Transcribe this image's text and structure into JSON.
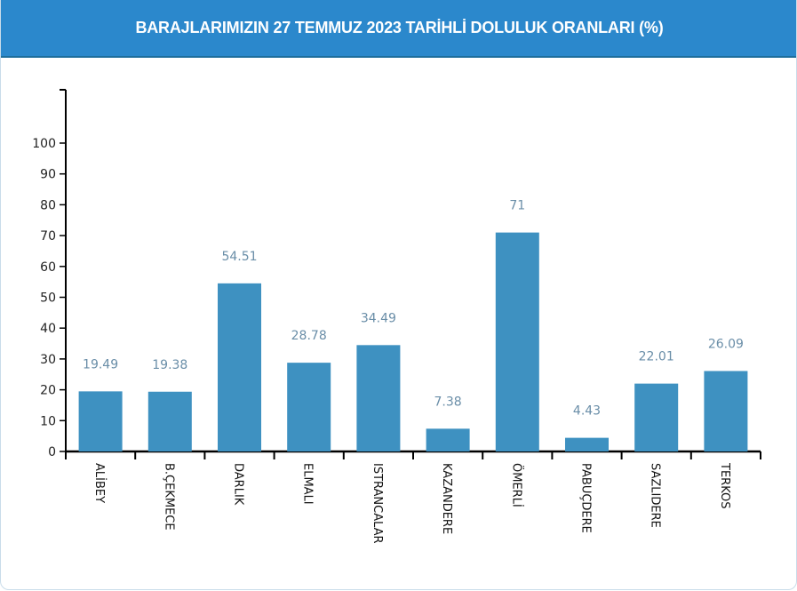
{
  "header": {
    "title": "BARAJLARIMIZIN 27 TEMMUZ 2023 TARİHLİ DOLULUK ORANLARI (%)",
    "background_color": "#2b88cc"
  },
  "colors": {
    "bar": "#3e91c1",
    "value_label": "#6a8ea8",
    "axis": "#000000"
  },
  "chart_data": {
    "type": "bar",
    "title": "BARAJLARIMIZIN 27 TEMMUZ 2023 TARİHLİ DOLULUK ORANLARI (%)",
    "xlabel": "",
    "ylabel": "",
    "categories": [
      "ALİBEY",
      "B.ÇEKMECE",
      "DARLIK",
      "ELMALI",
      "ISTRANCALAR",
      "KAZANDERE",
      "ÖMERLİ",
      "PABUÇDERE",
      "SAZLIDERE",
      "TERKOS"
    ],
    "values": [
      19.49,
      19.38,
      54.51,
      28.78,
      34.49,
      7.38,
      71,
      4.43,
      22.01,
      26.09
    ],
    "value_labels": [
      "19.49",
      "19.38",
      "54.51",
      "28.78",
      "34.49",
      "7.38",
      "71",
      "4.43",
      "22.01",
      "26.09"
    ],
    "y_ticks": [
      0,
      10,
      20,
      30,
      40,
      50,
      60,
      70,
      80,
      90,
      100
    ],
    "ylim": [
      0,
      117
    ],
    "grid": false,
    "legend": null,
    "x_label_rotation": 90
  }
}
